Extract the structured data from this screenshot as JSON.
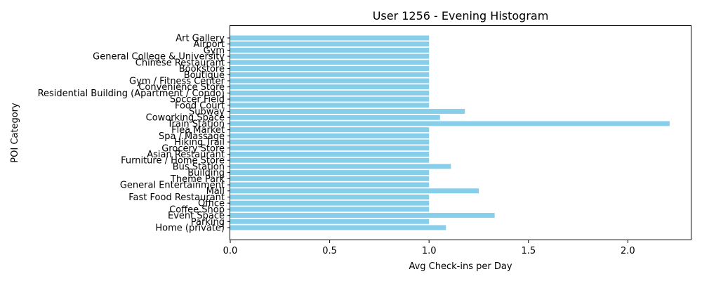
{
  "chart_data": {
    "type": "bar",
    "orientation": "horizontal",
    "title": "User 1256 - Evening Histogram",
    "xlabel": "Avg Check-ins per Day",
    "ylabel": "POI Category",
    "xlim": [
      0,
      2.32
    ],
    "xticks": [
      "0.0",
      "0.5",
      "1.0",
      "1.5",
      "2.0"
    ],
    "bar_color": "#87ceeb",
    "grid": false,
    "categories": [
      "Art Gallery",
      "Airport",
      "Gym",
      "General College & University",
      "Chinese Restaurant",
      "Bookstore",
      "Boutique",
      "Gym / Fitness Center",
      "Convenience Store",
      "Residential Building (Apartment / Condo)",
      "Soccer Field",
      "Food Court",
      "Subway",
      "Coworking Space",
      "Train Station",
      "Flea Market",
      "Spa / Massage",
      "Hiking Trail",
      "Grocery Store",
      "Asian Restaurant",
      "Furniture / Home Store",
      "Bus Station",
      "Building",
      "Theme Park",
      "General Entertainment",
      "Mall",
      "Fast Food Restaurant",
      "Office",
      "Coffee Shop",
      "Event Space",
      "Parking",
      "Home (private)"
    ],
    "values": [
      1,
      1,
      1,
      1,
      1,
      1,
      1,
      1,
      1,
      1,
      1,
      1,
      1.18,
      1.055,
      2.21,
      1,
      1,
      1,
      1,
      1,
      1,
      1.11,
      1,
      1,
      1,
      1.25,
      1,
      1,
      1,
      1.33,
      1,
      1.085
    ]
  }
}
